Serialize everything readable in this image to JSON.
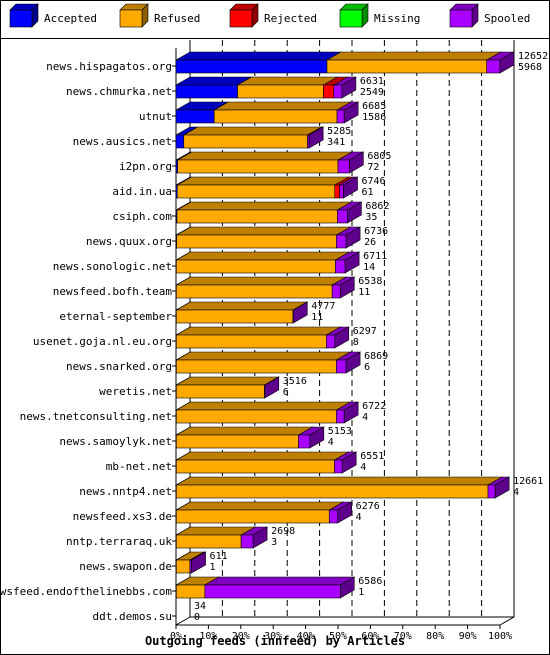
{
  "chart_data": {
    "type": "bar",
    "orientation": "horizontal",
    "stacked": true,
    "style": "3d",
    "xlabel": "Outgoing feeds (innfeed) by Articles",
    "x_ticks": [
      "0%",
      "10%",
      "20%",
      "30%",
      "40%",
      "50%",
      "60%",
      "70%",
      "80%",
      "90%",
      "100%"
    ],
    "xlim": [
      0,
      100
    ],
    "legend_position": "top",
    "series": [
      {
        "name": "Accepted",
        "color": "#0000ff"
      },
      {
        "name": "Refused",
        "color": "#ffaa00"
      },
      {
        "name": "Rejected",
        "color": "#ff0000"
      },
      {
        "name": "Missing",
        "color": "#00ff00"
      },
      {
        "name": "Spooled",
        "color": "#aa00ff"
      }
    ],
    "categories": [
      "news.hispagatos.org",
      "news.chmurka.net",
      "utnut",
      "news.ausics.net",
      "i2pn.org",
      "aid.in.ua",
      "csiph.com",
      "news.quux.org",
      "news.sonologic.net",
      "newsfeed.bofh.team",
      "eternal-september",
      "usenet.goja.nl.eu.org",
      "news.snarked.org",
      "weretis.net",
      "news.tnetconsulting.net",
      "news.samoylyk.net",
      "mb-net.net",
      "news.nntp4.net",
      "newsfeed.xs3.de",
      "nntp.terraraq.uk",
      "news.swapon.de",
      "newsfeed.endofthelinebbs.com",
      "ddt.demos.su"
    ],
    "offered_labels": [
      "12652",
      "6631",
      "6685",
      "5285",
      "6805",
      "6746",
      "6862",
      "6736",
      "6711",
      "6538",
      "4777",
      "6297",
      "6869",
      "3516",
      "6722",
      "5153",
      "6551",
      "12661",
      "6276",
      "2698",
      "611",
      "6586",
      "34"
    ],
    "accepted_labels": [
      "5968",
      "2549",
      "1586",
      "341",
      "72",
      "61",
      "35",
      "26",
      "14",
      "11",
      "11",
      "8",
      "6",
      "6",
      "4",
      "4",
      "4",
      "4",
      "4",
      "3",
      "1",
      "1",
      "0"
    ],
    "segments_percent": [
      [
        46.6,
        49.3,
        0,
        0,
        4.1
      ],
      [
        19.0,
        26.5,
        3.2,
        0,
        2.5
      ],
      [
        11.8,
        37.9,
        0,
        0,
        2.2
      ],
      [
        2.4,
        38.2,
        0,
        0,
        0.5
      ],
      [
        0.5,
        49.5,
        0,
        0,
        3.5
      ],
      [
        0.4,
        48.6,
        1.5,
        0,
        1.2
      ],
      [
        0.3,
        49.5,
        0,
        0,
        3.1
      ],
      [
        0.2,
        49.3,
        0,
        0,
        3.0
      ],
      [
        0.1,
        49.1,
        0,
        0,
        3.0
      ],
      [
        0.1,
        48.1,
        0,
        0,
        2.5
      ],
      [
        0.1,
        36.0,
        0,
        0,
        0.1
      ],
      [
        0.1,
        46.3,
        0,
        0,
        2.6
      ],
      [
        0.1,
        49.4,
        0,
        0,
        3.0
      ],
      [
        0.1,
        27.2,
        0,
        0,
        0.1
      ],
      [
        0.1,
        49.4,
        0,
        0,
        2.4
      ],
      [
        0.1,
        37.7,
        0,
        0,
        3.5
      ],
      [
        0.1,
        48.8,
        0,
        0,
        2.4
      ],
      [
        0.1,
        96.2,
        0,
        0,
        2.2
      ],
      [
        0.1,
        47.2,
        0,
        0,
        2.6
      ],
      [
        0.1,
        20.0,
        0,
        0,
        3.7
      ],
      [
        0.1,
        4.2,
        0,
        0,
        0.5
      ],
      [
        0.1,
        8.8,
        0,
        0,
        41.8
      ],
      [
        0,
        0,
        0,
        0,
        0
      ]
    ]
  }
}
